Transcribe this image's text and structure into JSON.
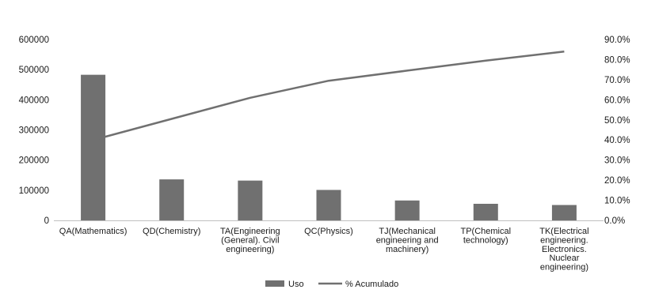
{
  "chart_data": {
    "type": "bar",
    "categories": [
      "QA(Mathematics)",
      "QD(Chemistry)",
      "TA(Engineering (General). Civil engineering)",
      "QC(Physics)",
      "TJ(Mechanical engineering and machinery)",
      "TP(Chemical technology)",
      "TK(Electrical engineering. Electronics. Nuclear engineering)"
    ],
    "category_lines": [
      [
        "QA(Mathematics)"
      ],
      [
        "QD(Chemistry)"
      ],
      [
        "TA(Engineering",
        "(General). Civil",
        "engineering)"
      ],
      [
        "QC(Physics)"
      ],
      [
        "TJ(Mechanical",
        "engineering and",
        "machinery)"
      ],
      [
        "TP(Chemical",
        "technology)"
      ],
      [
        "TK(Electrical",
        "engineering.",
        "Electronics.",
        "Nuclear",
        "engineering)"
      ]
    ],
    "series": [
      {
        "name": "Uso",
        "type": "bar",
        "axis": "left",
        "color": "#707070",
        "values": [
          483000,
          136000,
          132000,
          101000,
          66000,
          55000,
          51000
        ]
      },
      {
        "name": "% Acumulado",
        "type": "line",
        "axis": "right",
        "color": "#707070",
        "values": [
          0.4,
          0.505,
          0.61,
          0.695,
          0.745,
          0.795,
          0.84
        ]
      }
    ],
    "y_left": {
      "min": 0,
      "max": 600000,
      "ticks": [
        "0",
        "100000",
        "200000",
        "300000",
        "400000",
        "500000",
        "600000"
      ]
    },
    "y_right": {
      "min": 0,
      "max": 0.9,
      "ticks": [
        "0.0%",
        "10.0%",
        "20.0%",
        "30.0%",
        "40.0%",
        "50.0%",
        "60.0%",
        "70.0%",
        "80.0%",
        "90.0%"
      ]
    },
    "grid": false,
    "legend_position": "bottom"
  }
}
